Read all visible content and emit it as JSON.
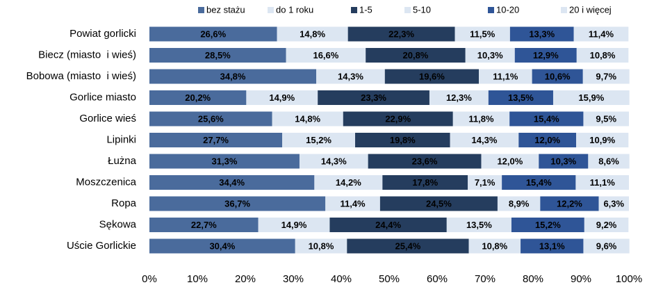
{
  "chart_data": {
    "type": "stacked-bar-horizontal",
    "categories": [
      "Powiat gorlicki",
      "Biecz (miasto  i wieś)",
      "Bobowa (miasto  i wieś)",
      "Gorlice miasto",
      "Gorlice wieś",
      "Lipinki",
      "Łużna",
      "Moszczenica",
      "Ropa",
      "Sękowa",
      "Uście Gorlickie"
    ],
    "series": [
      {
        "name": "bez stażu",
        "color": "#4a6b9c",
        "values": [
          26.6,
          28.5,
          34.8,
          20.2,
          25.6,
          27.7,
          31.3,
          34.4,
          36.7,
          22.7,
          30.4
        ],
        "value_labels": [
          "26,6%",
          "28,5%",
          "34,8%",
          "20,2%",
          "25,6%",
          "27,7%",
          "31,3%",
          "34,4%",
          "36,7%",
          "22,7%",
          "30,4%"
        ]
      },
      {
        "name": "do 1 roku",
        "color": "#dce6f2",
        "values": [
          14.8,
          16.6,
          14.3,
          14.9,
          14.8,
          15.2,
          14.3,
          14.2,
          11.4,
          14.9,
          10.8
        ],
        "value_labels": [
          "14,8%",
          "16,6%",
          "14,3%",
          "14,9%",
          "14,8%",
          "15,2%",
          "14,3%",
          "14,2%",
          "11,4%",
          "14,9%",
          "10,8%"
        ]
      },
      {
        "name": "1-5",
        "color": "#253d5e",
        "values": [
          22.3,
          20.8,
          19.6,
          23.3,
          22.9,
          19.8,
          23.6,
          17.8,
          24.5,
          24.4,
          25.4
        ],
        "value_labels": [
          "22,3%",
          "20,8%",
          "19,6%",
          "23,3%",
          "22,9%",
          "19,8%",
          "23,6%",
          "17,8%",
          "24,5%",
          "24,4%",
          "25,4%"
        ]
      },
      {
        "name": "5-10",
        "color": "#dce6f2",
        "values": [
          11.5,
          10.3,
          11.1,
          12.3,
          11.8,
          14.3,
          12.0,
          7.1,
          8.9,
          13.5,
          10.8
        ],
        "value_labels": [
          "11,5%",
          "10,3%",
          "11,1%",
          "12,3%",
          "11,8%",
          "14,3%",
          "12,0%",
          "7,1%",
          "8,9%",
          "13,5%",
          "10,8%"
        ]
      },
      {
        "name": "10-20",
        "color": "#2f5597",
        "values": [
          13.3,
          12.9,
          10.6,
          13.5,
          15.4,
          12.0,
          10.3,
          15.4,
          12.2,
          15.2,
          13.1
        ],
        "value_labels": [
          "13,3%",
          "12,9%",
          "10,6%",
          "13,5%",
          "15,4%",
          "12,0%",
          "10,3%",
          "15,4%",
          "12,2%",
          "15,2%",
          "13,1%"
        ]
      },
      {
        "name": "20 i więcej",
        "color": "#dce6f2",
        "values": [
          11.4,
          10.8,
          9.7,
          15.9,
          9.5,
          10.9,
          8.6,
          11.1,
          6.3,
          9.2,
          9.6
        ],
        "value_labels": [
          "11,4%",
          "10,8%",
          "9,7%",
          "15,9%",
          "9,5%",
          "10,9%",
          "8,6%",
          "11,1%",
          "6,3%",
          "9,2%",
          "9,6%"
        ]
      }
    ],
    "xlim": [
      0,
      100
    ],
    "xticks": [
      {
        "value": 0,
        "label": "0%"
      },
      {
        "value": 10,
        "label": "10%"
      },
      {
        "value": 20,
        "label": "20%"
      },
      {
        "value": 30,
        "label": "30%"
      },
      {
        "value": 40,
        "label": "40%"
      },
      {
        "value": 50,
        "label": "50%"
      },
      {
        "value": 60,
        "label": "60%"
      },
      {
        "value": 70,
        "label": "70%"
      },
      {
        "value": 80,
        "label": "80%"
      },
      {
        "value": 90,
        "label": "90%"
      },
      {
        "value": 100,
        "label": "100%"
      }
    ],
    "legend": "top"
  }
}
